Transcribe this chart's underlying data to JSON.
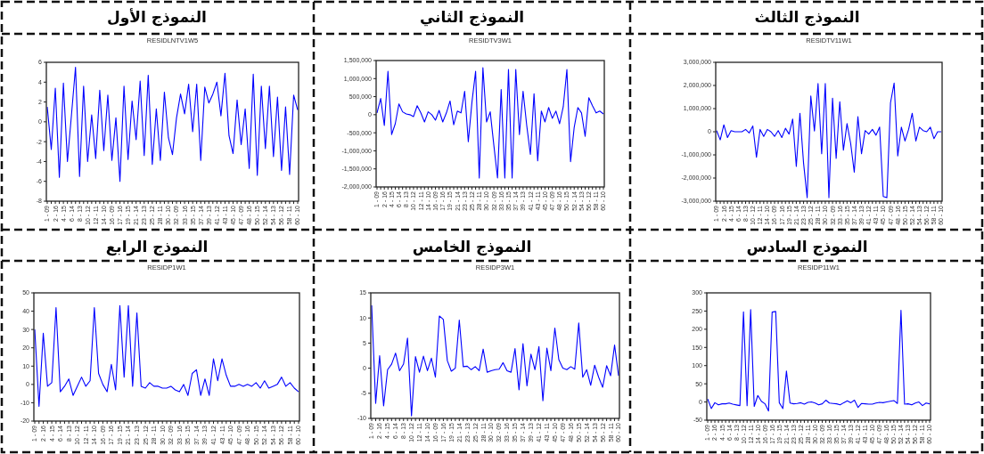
{
  "chart_data": [
    {
      "type": "line",
      "title": "النموذج الأول",
      "subtitle": "RESIDLNTV1W5",
      "categories": [
        "1 - 09",
        null,
        "2 - 16",
        null,
        "4 - 15",
        null,
        "6 - 14",
        null,
        "8 - 13",
        null,
        "10 - 12",
        null,
        "12 - 11",
        null,
        "14 - 10",
        null,
        "16 - 09",
        null,
        "17 - 16",
        null,
        "19 - 15",
        null,
        "21 - 14",
        null,
        "23 - 13",
        null,
        "25 - 12",
        null,
        "28 - 11",
        null,
        "30 - 10",
        null,
        "32 - 09",
        null,
        "33 - 16",
        null,
        "35 - 15",
        null,
        "37 - 14",
        null,
        "39 - 13",
        null,
        "41 - 12",
        null,
        "43 - 11",
        null,
        "45 - 10",
        null,
        "47 - 09",
        null,
        "48 - 16",
        null,
        "50 - 15",
        null,
        "52 - 14",
        null,
        "54 - 13",
        null,
        "56 - 12",
        null,
        "58 - 11",
        null,
        "60 - 10"
      ],
      "series": [
        {
          "color": "#0000ff",
          "values": [
            1.5,
            -2.8,
            3.4,
            -5.6,
            3.9,
            -4,
            0.7,
            5.5,
            -5.5,
            3.6,
            -4,
            0.7,
            -3.7,
            3.2,
            -2.9,
            2.7,
            -3.9,
            0.4,
            -6,
            3.6,
            -3.8,
            2.1,
            -1.8,
            4.1,
            -3.4,
            4.7,
            -4.3,
            1.3,
            -3.9,
            3,
            -1.6,
            -3.3,
            0.4,
            2.8,
            0.8,
            3.8,
            -1,
            3.8,
            -3.9,
            3.5,
            1.9,
            2.8,
            4,
            0.6,
            4.9,
            -1.4,
            -3.2,
            2.2,
            -2.3,
            1.3,
            -4.7,
            4.8,
            -5.4,
            3.6,
            -2.7,
            3.6,
            -3.5,
            2.5,
            -4.9,
            1.5,
            -5.3,
            2.7,
            1.2
          ]
        }
      ],
      "ylim": [
        -8,
        6
      ],
      "yticks": [
        -8,
        -6,
        -4,
        -2,
        0,
        2,
        4,
        6
      ],
      "grid": false
    },
    {
      "type": "line",
      "title": "النموذج الثاني",
      "subtitle": "RESIDTV3W1",
      "categories": [
        "1 - 09",
        null,
        "2 - 16",
        null,
        "4 - 15",
        null,
        "6 - 14",
        null,
        "8 - 13",
        null,
        "10 - 12",
        null,
        "12 - 11",
        null,
        "14 - 10",
        null,
        "16 - 09",
        null,
        "17 - 16",
        null,
        "19 - 15",
        null,
        "21 - 14",
        null,
        "23 - 13",
        null,
        "25 - 12",
        null,
        "28 - 11",
        null,
        "30 - 10",
        null,
        "32 - 09",
        null,
        "33 - 16",
        null,
        "35 - 15",
        null,
        "37 - 14",
        null,
        "39 - 13",
        null,
        "41 - 12",
        null,
        "43 - 11",
        null,
        "45 - 10",
        null,
        "47 - 09",
        null,
        "48 - 16",
        null,
        "50 - 15",
        null,
        "52 - 14",
        null,
        "54 - 13",
        null,
        "56 - 12",
        null,
        "58 - 11",
        null,
        "60 - 10"
      ],
      "series": [
        {
          "color": "#0000ff",
          "values": [
            50000,
            450000,
            -300000,
            1200000,
            -550000,
            -250000,
            300000,
            80000,
            20000,
            0,
            -50000,
            250000,
            50000,
            -200000,
            80000,
            0,
            -150000,
            120000,
            -200000,
            50000,
            380000,
            -280000,
            100000,
            50000,
            650000,
            -750000,
            350000,
            1200000,
            -1750000,
            1300000,
            -200000,
            80000,
            -850000,
            -1750000,
            700000,
            -1750000,
            1250000,
            -1750000,
            1250000,
            -550000,
            650000,
            -300000,
            -1100000,
            580000,
            -1280000,
            100000,
            -200000,
            200000,
            -100000,
            100000,
            -250000,
            220000,
            1250000,
            -1300000,
            -350000,
            200000,
            50000,
            -600000,
            470000,
            250000,
            50000,
            100000,
            20000
          ]
        }
      ],
      "ylim": [
        -2000000,
        1500000
      ],
      "yticks": [
        {
          "value": -2000000,
          "label": "-2,000,000"
        },
        {
          "value": -1500000,
          "label": "-1,500,000"
        },
        {
          "value": -1000000,
          "label": "-1,000,000"
        },
        {
          "value": -500000,
          "label": "-500,000"
        },
        0,
        {
          "value": 500000,
          "label": "500,000"
        },
        {
          "value": 1000000,
          "label": "1,000,000"
        },
        {
          "value": 1500000,
          "label": "1,500,000"
        }
      ],
      "grid": false
    },
    {
      "type": "line",
      "title": "النموذج الثالث",
      "subtitle": "RESIDTV11W1",
      "categories": [
        "1 - 09",
        null,
        "2 - 16",
        null,
        "4 - 15",
        null,
        "6 - 14",
        null,
        "8 - 13",
        null,
        "10 - 12",
        null,
        "12 - 11",
        null,
        "14 - 10",
        null,
        "16 - 09",
        null,
        "17 - 16",
        null,
        "19 - 15",
        null,
        "21 - 14",
        null,
        "23 - 13",
        null,
        "25 - 12",
        null,
        "28 - 11",
        null,
        "30 - 10",
        null,
        "32 - 09",
        null,
        "33 - 16",
        null,
        "35 - 15",
        null,
        "37 - 14",
        null,
        "39 - 13",
        null,
        "41 - 12",
        null,
        "43 - 11",
        null,
        "45 - 10",
        null,
        "47 - 09",
        null,
        "48 - 16",
        null,
        "50 - 15",
        null,
        "52 - 14",
        null,
        "54 - 13",
        null,
        "56 - 12",
        null,
        "58 - 11",
        null,
        "60 - 10"
      ],
      "series": [
        {
          "color": "#0000ff",
          "values": [
            50000,
            -350000,
            300000,
            -250000,
            50000,
            0,
            0,
            0,
            100000,
            -50000,
            250000,
            -1100000,
            100000,
            -200000,
            100000,
            0,
            -200000,
            50000,
            -250000,
            150000,
            -100000,
            550000,
            -1500000,
            800000,
            -1350000,
            -2850000,
            1550000,
            30000,
            2080000,
            -950000,
            2080000,
            -2850000,
            1450000,
            -1150000,
            1300000,
            -800000,
            350000,
            -500000,
            -1750000,
            650000,
            -950000,
            50000,
            -100000,
            100000,
            -150000,
            200000,
            -2800000,
            -2850000,
            1250000,
            2100000,
            -1050000,
            200000,
            -400000,
            100000,
            800000,
            -400000,
            200000,
            50000,
            0,
            200000,
            -300000,
            0,
            0
          ]
        }
      ],
      "ylim": [
        -3000000,
        3000000
      ],
      "yticks": [
        {
          "value": -3000000,
          "label": "-3,000,000"
        },
        {
          "value": -2000000,
          "label": "-2,000,000"
        },
        {
          "value": -1000000,
          "label": "-1,000,000"
        },
        0,
        {
          "value": 1000000,
          "label": "1,000,000"
        },
        {
          "value": 2000000,
          "label": "2,000,000"
        },
        {
          "value": 3000000,
          "label": "3,000,000"
        }
      ],
      "grid": false
    },
    {
      "type": "line",
      "title": "النموذج الرابع",
      "subtitle": "RESIDP1W1",
      "categories": [
        "1 - 09",
        null,
        "2 - 16",
        null,
        "4 - 15",
        null,
        "6 - 14",
        null,
        "8 - 13",
        null,
        "10 - 12",
        null,
        "12 - 11",
        null,
        "14 - 10",
        null,
        "16 - 09",
        null,
        "17 - 16",
        null,
        "19 - 15",
        null,
        "21 - 14",
        null,
        "23 - 13",
        null,
        "25 - 12",
        null,
        "28 - 11",
        null,
        "30 - 10",
        null,
        "32 - 09",
        null,
        "33 - 16",
        null,
        "35 - 15",
        null,
        "37 - 14",
        null,
        "39 - 13",
        null,
        "41 - 12",
        null,
        "43 - 11",
        null,
        "45 - 10",
        null,
        "47 - 09",
        null,
        "48 - 16",
        null,
        "50 - 15",
        null,
        "52 - 14",
        null,
        "54 - 13",
        null,
        "56 - 12",
        null,
        "58 - 11",
        null,
        "60 - 10"
      ],
      "series": [
        {
          "color": "#0000ff",
          "values": [
            30,
            -12,
            28,
            -1,
            1,
            42,
            -4,
            -1,
            3,
            -6,
            -1,
            4,
            -1,
            2,
            42,
            6,
            0,
            -4,
            11,
            -3,
            43,
            4,
            43,
            -1,
            39,
            -1,
            -2,
            1,
            -1,
            -1,
            -2,
            -2,
            -1,
            -3,
            -4,
            0,
            -6,
            6,
            8,
            -6,
            3,
            -6,
            14,
            2,
            14,
            5,
            -1,
            -1,
            0,
            -1,
            0,
            -1,
            1,
            -2,
            2,
            -2,
            -1,
            0,
            4,
            -1,
            1,
            -2,
            -4
          ]
        }
      ],
      "ylim": [
        -20,
        50
      ],
      "yticks": [
        -20,
        -10,
        0,
        10,
        20,
        30,
        40,
        50
      ],
      "grid": false
    },
    {
      "type": "line",
      "title": "النموذج الخامس",
      "subtitle": "RESIDP3W1",
      "categories": [
        "1 - 09",
        null,
        "2 - 16",
        null,
        "4 - 15",
        null,
        "6 - 14",
        null,
        "8 - 13",
        null,
        "10 - 12",
        null,
        "12 - 11",
        null,
        "14 - 10",
        null,
        "16 - 09",
        null,
        "17 - 16",
        null,
        "19 - 15",
        null,
        "21 - 14",
        null,
        "23 - 13",
        null,
        "25 - 12",
        null,
        "28 - 11",
        null,
        "30 - 10",
        null,
        "32 - 09",
        null,
        "33 - 16",
        null,
        "35 - 15",
        null,
        "37 - 14",
        null,
        "39 - 13",
        null,
        "41 - 12",
        null,
        "43 - 11",
        null,
        "45 - 10",
        null,
        "47 - 09",
        null,
        "48 - 16",
        null,
        "50 - 15",
        null,
        "52 - 14",
        null,
        "54 - 13",
        null,
        "56 - 12",
        null,
        "58 - 11",
        null,
        "60 - 10"
      ],
      "series": [
        {
          "color": "#0000ff",
          "values": [
            12.5,
            -7,
            2.5,
            -7.5,
            -0.3,
            0.8,
            3,
            -0.5,
            0.8,
            6,
            -9.5,
            2.3,
            -0.8,
            2.4,
            -0.5,
            2,
            -1.8,
            10.4,
            9.7,
            1.5,
            -0.6,
            0,
            9.6,
            0.3,
            0.4,
            -0.3,
            0.3,
            -0.5,
            3.8,
            -0.8,
            -0.5,
            -0.3,
            -0.2,
            1.1,
            -0.5,
            -0.8,
            3.9,
            -4.3,
            4.9,
            -3.5,
            2.8,
            -0.3,
            4.3,
            -6.5,
            4,
            -0.5,
            8,
            1.7,
            0,
            -0.3,
            0.3,
            -0.2,
            9,
            -1.8,
            -0.3,
            -3.4,
            0.6,
            -1.8,
            -3.8,
            0.5,
            -1.5,
            4.6,
            -1.5
          ]
        }
      ],
      "ylim": [
        -10,
        15
      ],
      "yticks": [
        -10,
        -5,
        0,
        5,
        10,
        15
      ],
      "grid": false
    },
    {
      "type": "line",
      "title": "النموذج السادس",
      "subtitle": "RESIDP11W1",
      "categories": [
        "1 - 09",
        null,
        "2 - 16",
        null,
        "4 - 15",
        null,
        "6 - 14",
        null,
        "8 - 13",
        null,
        "10 - 12",
        null,
        "12 - 11",
        null,
        "14 - 10",
        null,
        "16 - 09",
        null,
        "17 - 16",
        null,
        "19 - 15",
        null,
        "21 - 14",
        null,
        "23 - 13",
        null,
        "25 - 12",
        null,
        "28 - 11",
        null,
        "30 - 10",
        null,
        "32 - 09",
        null,
        "33 - 16",
        null,
        "35 - 15",
        null,
        "37 - 14",
        null,
        "39 - 13",
        null,
        "41 - 12",
        null,
        "43 - 11",
        null,
        "45 - 10",
        null,
        "47 - 09",
        null,
        "48 - 16",
        null,
        "50 - 15",
        null,
        "52 - 14",
        null,
        "54 - 13",
        null,
        "56 - 12",
        null,
        "58 - 11",
        null,
        "60 - 10"
      ],
      "series": [
        {
          "color": "#0000ff",
          "values": [
            8,
            -18,
            -2,
            -8,
            -5,
            -5,
            -3,
            -6,
            -8,
            -10,
            248,
            -10,
            254,
            -12,
            18,
            2,
            -5,
            -25,
            247,
            249,
            -2,
            -18,
            85,
            -3,
            -5,
            -4,
            -2,
            -6,
            -1,
            0,
            -3,
            -8,
            -5,
            5,
            -3,
            -4,
            -5,
            -8,
            -2,
            3,
            -2,
            5,
            -15,
            -4,
            -5,
            -6,
            -6,
            -3,
            -1,
            -2,
            0,
            2,
            4,
            -4,
            252,
            -6,
            -5,
            -8,
            -3,
            0,
            -10,
            -3,
            -5
          ]
        }
      ],
      "ylim": [
        -50,
        300
      ],
      "yticks": [
        -50,
        0,
        50,
        100,
        150,
        200,
        250,
        300
      ],
      "grid": false
    }
  ]
}
